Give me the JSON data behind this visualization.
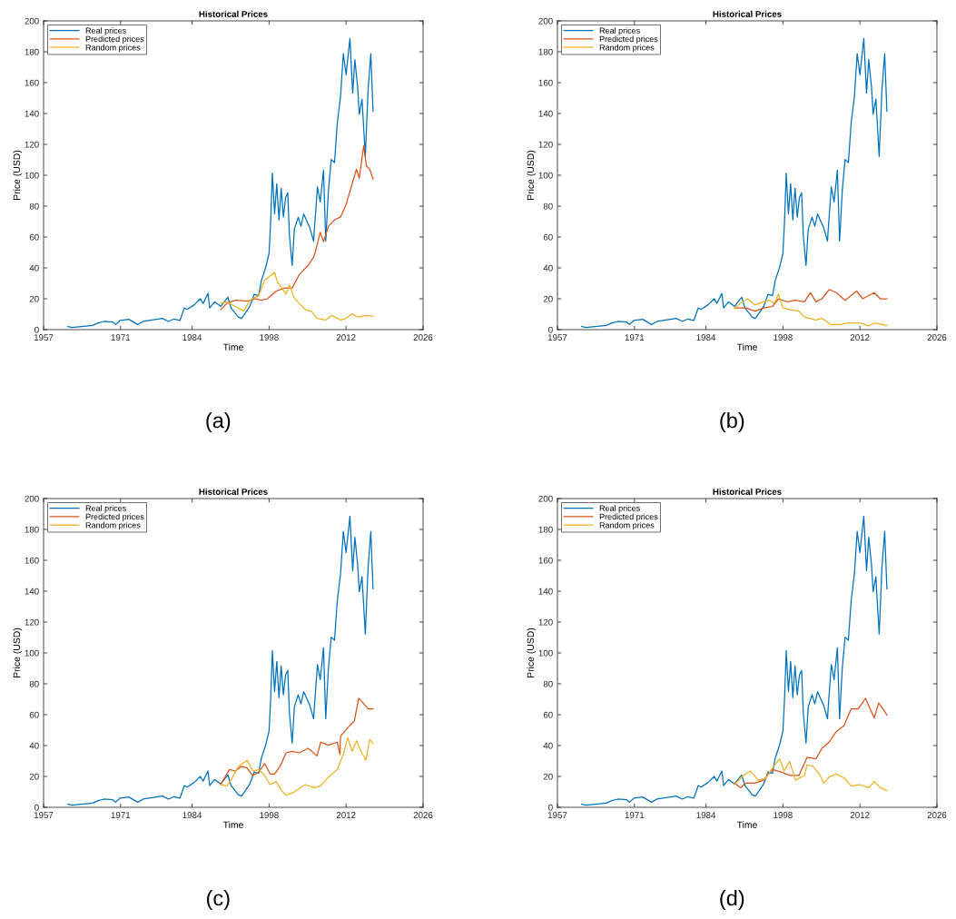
{
  "chart_data": [
    {
      "type": "line",
      "title": "Historical Prices",
      "xlabel": "Time",
      "ylabel": "Price (USD)",
      "annotations": [
        "(a)"
      ],
      "legend": "top left",
      "grid": false,
      "xlim": [
        1957,
        2026
      ],
      "xticks": [
        1957,
        1971,
        1984,
        1998,
        2012,
        2026
      ],
      "ylim": [
        0,
        200
      ],
      "yticks": [
        0,
        20,
        40,
        60,
        80,
        100,
        120,
        140,
        160,
        180,
        200
      ],
      "series": [
        {
          "name": "Real prices",
          "color": "#0072bd",
          "x": [
            1961.4,
            1962.2,
            1965.9,
            1966.9,
            1968.0,
            1969.6,
            1970.1,
            1970.9,
            1972.5,
            1974.1,
            1975.1,
            1978.6,
            1979.7,
            1980.7,
            1981.8,
            1982.6,
            1983.1,
            1984.4,
            1985.5,
            1986.0,
            1986.9,
            1987.2,
            1988.1,
            1989.2,
            1990.5,
            1991.1,
            1992.4,
            1993.0,
            1994.5,
            1995.3,
            1996.1,
            1996.6,
            1997.4,
            1998.0,
            1998.3,
            1998.6,
            1999.0,
            1999.4,
            1999.8,
            2000.2,
            2000.6,
            2001.0,
            2001.4,
            2001.7,
            2002.2,
            2002.6,
            2003.3,
            2003.8,
            2004.3,
            2004.9,
            2005.4,
            2006.1,
            2006.2,
            2006.8,
            2007.3,
            2007.9,
            2008.3,
            2008.8,
            2009.3,
            2009.9,
            2010.4,
            2011.0,
            2011.5,
            2012.0,
            2012.7,
            2013.2,
            2013.6,
            2014.1,
            2014.4,
            2014.9,
            2015.5,
            2016.0,
            2016.5,
            2016.9
          ],
          "values": [
            2,
            1.4,
            2.7,
            4.3,
            5.3,
            4.9,
            3.3,
            5.9,
            6.7,
            3.3,
            5.3,
            7.3,
            5.3,
            6.9,
            5.9,
            14.1,
            13.1,
            16.1,
            20,
            17,
            23.5,
            14.1,
            18,
            15.1,
            21,
            14,
            8.2,
            7.3,
            15.1,
            22.9,
            22,
            31.8,
            40.6,
            49.4,
            71,
            101.4,
            74.9,
            94.5,
            71,
            91.6,
            72.9,
            85.7,
            88.6,
            61.2,
            41.6,
            65.1,
            72.9,
            67,
            74.9,
            70,
            66.1,
            57.3,
            63.1,
            92.5,
            82.7,
            103.3,
            57.3,
            90.6,
            110.2,
            108.2,
            133.7,
            151.4,
            178.8,
            165.1,
            188.6,
            153.3,
            174.9,
            157.3,
            139.6,
            149.4,
            112.2,
            155.3,
            178.8,
            141.6
          ]
        },
        {
          "name": "Predicted prices",
          "color": "#d95319",
          "x": [
            1989.2,
            1990.3,
            1991.9,
            1994.0,
            1995.6,
            1996.6,
            1997.7,
            1999.3,
            2000.9,
            2002.2,
            2003.5,
            2005.1,
            2006.2,
            2007.3,
            2007.9,
            2008.8,
            2009.9,
            2011.0,
            2012.0,
            2013.1,
            2013.9,
            2014.4,
            2015.2,
            2015.7,
            2016.3,
            2016.9
          ],
          "values": [
            13,
            17,
            19,
            18.4,
            20,
            19,
            20,
            25,
            27,
            27,
            35.7,
            41.6,
            47.5,
            63,
            57,
            67,
            71,
            73,
            81,
            94.5,
            104,
            98,
            119,
            106,
            104,
            97.5
          ]
        },
        {
          "name": "Random prices",
          "color": "#edb120",
          "x": [
            1989.2,
            1990.3,
            1991.9,
            1993.4,
            1994.5,
            1996.1,
            1997.2,
            1997.9,
            1999.0,
            1999.5,
            2000.3,
            2001.1,
            2001.7,
            2002.5,
            2003.5,
            2004.6,
            2005.7,
            2006.7,
            2008.3,
            2009.4,
            2011.0,
            2012.0,
            2013.1,
            2014.1,
            2015.7,
            2016.9
          ],
          "values": [
            17,
            18,
            15,
            12,
            19,
            22,
            32,
            34,
            37,
            31,
            27,
            23,
            29,
            21,
            17,
            13,
            12,
            7.3,
            6.3,
            9.2,
            6.3,
            7.3,
            10.2,
            8.2,
            9.2,
            8.6
          ]
        }
      ]
    },
    {
      "type": "line",
      "title": "Historical Prices",
      "xlabel": "Time",
      "ylabel": "Price (USD)",
      "annotations": [
        "(b)"
      ],
      "legend": "top left",
      "grid": false,
      "xlim": [
        1957,
        2026
      ],
      "xticks": [
        1957,
        1971,
        1984,
        1998,
        2012,
        2026
      ],
      "ylim": [
        0,
        200
      ],
      "yticks": [
        0,
        20,
        40,
        60,
        80,
        100,
        120,
        140,
        160,
        180,
        200
      ],
      "series": [
        {
          "name": "Real prices",
          "color": "#0072bd",
          "x": [
            1961.4,
            1962.2,
            1965.9,
            1966.9,
            1968.0,
            1969.6,
            1970.1,
            1970.9,
            1972.5,
            1974.1,
            1975.1,
            1978.6,
            1979.7,
            1980.7,
            1981.8,
            1982.6,
            1983.1,
            1984.4,
            1985.5,
            1986.0,
            1986.9,
            1987.2,
            1988.1,
            1989.2,
            1990.5,
            1991.1,
            1992.4,
            1993.0,
            1994.5,
            1995.3,
            1996.1,
            1996.6,
            1997.4,
            1998.0,
            1998.3,
            1998.6,
            1999.0,
            1999.4,
            1999.8,
            2000.2,
            2000.6,
            2001.0,
            2001.4,
            2001.7,
            2002.2,
            2002.6,
            2003.3,
            2003.8,
            2004.3,
            2004.9,
            2005.4,
            2006.1,
            2006.2,
            2006.8,
            2007.3,
            2007.9,
            2008.3,
            2008.8,
            2009.3,
            2009.9,
            2010.4,
            2011.0,
            2011.5,
            2012.0,
            2012.7,
            2013.2,
            2013.6,
            2014.1,
            2014.4,
            2014.9,
            2015.5,
            2016.0,
            2016.5,
            2016.9
          ],
          "values": [
            2,
            1.4,
            2.7,
            4.3,
            5.3,
            4.9,
            3.3,
            5.9,
            6.7,
            3.3,
            5.3,
            7.3,
            5.3,
            6.9,
            5.9,
            14.1,
            13.1,
            16.1,
            20,
            17,
            23.5,
            14.1,
            18,
            15.1,
            21,
            14,
            8.2,
            7.3,
            15.1,
            22.9,
            22,
            31.8,
            40.6,
            49.4,
            71,
            101.4,
            74.9,
            94.5,
            71,
            91.6,
            72.9,
            85.7,
            88.6,
            61.2,
            41.6,
            65.1,
            72.9,
            67,
            74.9,
            70,
            66.1,
            57.3,
            63.1,
            92.5,
            82.7,
            103.3,
            57.3,
            90.6,
            110.2,
            108.2,
            133.7,
            151.4,
            178.8,
            165.1,
            188.6,
            153.3,
            174.9,
            157.3,
            139.6,
            149.4,
            112.2,
            155.3,
            178.8,
            141.6
          ]
        },
        {
          "name": "Predicted prices",
          "color": "#d95319",
          "x": [
            1989.2,
            1991.3,
            1992.9,
            1994.5,
            1996.1,
            1997.2,
            1998.8,
            2000.3,
            2001.9,
            2003.0,
            2004.0,
            2005.1,
            2006.4,
            2007.7,
            2009.3,
            2011.4,
            2012.5,
            2014.6,
            2015.7,
            2016.9
          ],
          "values": [
            14,
            14,
            12,
            14,
            15,
            20,
            18,
            19,
            18,
            24,
            18,
            20,
            26,
            24,
            19,
            25,
            20,
            24,
            20,
            20
          ]
        },
        {
          "name": "Random prices",
          "color": "#edb120",
          "x": [
            1989.2,
            1990.3,
            1991.6,
            1992.9,
            1994.5,
            1995.6,
            1996.4,
            1997.2,
            1998.0,
            1999.3,
            2000.9,
            2001.9,
            2004.0,
            2005.1,
            2006.7,
            2008.3,
            2009.9,
            2012.0,
            2013.6,
            2014.6,
            2016.9
          ],
          "values": [
            14,
            17,
            20,
            16,
            18,
            19,
            17,
            23,
            14,
            13,
            12,
            8.2,
            6.3,
            7.3,
            3.3,
            3.3,
            4.3,
            4.3,
            2.4,
            4.3,
            2.7
          ]
        }
      ]
    },
    {
      "type": "line",
      "title": "Historical Prices",
      "xlabel": "Time",
      "ylabel": "Price (USD)",
      "annotations": [
        "(c)"
      ],
      "legend": "top left",
      "grid": false,
      "xlim": [
        1957,
        2026
      ],
      "xticks": [
        1957,
        1971,
        1984,
        1998,
        2012,
        2026
      ],
      "ylim": [
        0,
        200
      ],
      "yticks": [
        0,
        20,
        40,
        60,
        80,
        100,
        120,
        140,
        160,
        180,
        200
      ],
      "series": [
        {
          "name": "Real prices",
          "color": "#0072bd",
          "x": [
            1961.4,
            1962.2,
            1965.9,
            1966.9,
            1968.0,
            1969.6,
            1970.1,
            1970.9,
            1972.5,
            1974.1,
            1975.1,
            1978.6,
            1979.7,
            1980.7,
            1981.8,
            1982.6,
            1983.1,
            1984.4,
            1985.5,
            1986.0,
            1986.9,
            1987.2,
            1988.1,
            1989.2,
            1990.5,
            1991.1,
            1992.4,
            1993.0,
            1994.5,
            1995.3,
            1996.1,
            1996.6,
            1997.4,
            1998.0,
            1998.3,
            1998.6,
            1999.0,
            1999.4,
            1999.8,
            2000.2,
            2000.6,
            2001.0,
            2001.4,
            2001.7,
            2002.2,
            2002.6,
            2003.3,
            2003.8,
            2004.3,
            2004.9,
            2005.4,
            2006.1,
            2006.2,
            2006.8,
            2007.3,
            2007.9,
            2008.3,
            2008.8,
            2009.3,
            2009.9,
            2010.4,
            2011.0,
            2011.5,
            2012.0,
            2012.7,
            2013.2,
            2013.6,
            2014.1,
            2014.4,
            2014.9,
            2015.5,
            2016.0,
            2016.5,
            2016.9
          ],
          "values": [
            2,
            1.4,
            2.7,
            4.3,
            5.3,
            4.9,
            3.3,
            5.9,
            6.7,
            3.3,
            5.3,
            7.3,
            5.3,
            6.9,
            5.9,
            14.1,
            13.1,
            16.1,
            20,
            17,
            23.5,
            14.1,
            18,
            15.1,
            21,
            14,
            8.2,
            7.3,
            15.1,
            22.9,
            22,
            31.8,
            40.6,
            49.4,
            71,
            101.4,
            74.9,
            94.5,
            71,
            91.6,
            72.9,
            85.7,
            88.6,
            61.2,
            41.6,
            65.1,
            72.9,
            67,
            74.9,
            70,
            66.1,
            57.3,
            63.1,
            92.5,
            82.7,
            103.3,
            57.3,
            90.6,
            110.2,
            108.2,
            133.7,
            151.4,
            178.8,
            165.1,
            188.6,
            153.3,
            174.9,
            157.3,
            139.6,
            149.4,
            112.2,
            155.3,
            178.8,
            141.6
          ]
        },
        {
          "name": "Predicted prices",
          "color": "#d95319",
          "x": [
            1989.2,
            1990.0,
            1990.8,
            1991.9,
            1992.9,
            1994.0,
            1995.0,
            1996.1,
            1997.2,
            1998.2,
            1999.0,
            2000.0,
            2001.1,
            2002.2,
            2003.5,
            2005.1,
            2006.7,
            2007.4,
            2008.8,
            2010.4,
            2010.9,
            2011.0,
            2012.4,
            2013.5,
            2014.3,
            2015.1,
            2016.0,
            2016.9
          ],
          "values": [
            14.7,
            19.6,
            24.5,
            23.5,
            26.5,
            25.5,
            20.6,
            22.5,
            28.4,
            21.6,
            21.6,
            26.5,
            35.3,
            36.3,
            35.3,
            38.2,
            33.3,
            42.2,
            40.2,
            42.2,
            34.3,
            46,
            52,
            55.9,
            70.6,
            67.6,
            63.7,
            63.7
          ]
        },
        {
          "name": "Random prices",
          "color": "#edb120",
          "x": [
            1989.2,
            1990.3,
            1991.1,
            1992.4,
            1994.0,
            1995.1,
            1996.1,
            1997.2,
            1998.2,
            1999.3,
            2000.3,
            2001.1,
            2002.5,
            2004.6,
            2006.2,
            2007.3,
            2008.8,
            2010.4,
            2011.5,
            2012.3,
            2013.1,
            2013.9,
            2014.7,
            2015.6,
            2016.3,
            2016.9
          ],
          "values": [
            14.7,
            13.7,
            17.6,
            26.5,
            30.4,
            23.5,
            24.5,
            20.6,
            14.7,
            16.7,
            10.8,
            7.8,
            9.8,
            14.7,
            12.7,
            13.7,
            19.6,
            24.5,
            34.3,
            45.1,
            36.3,
            43.1,
            36.3,
            30.4,
            44.1,
            41.2
          ]
        }
      ]
    },
    {
      "type": "line",
      "title": "Historical Prices",
      "xlabel": "Time",
      "ylabel": "Price (USD)",
      "annotations": [
        "(d)"
      ],
      "legend": "top left",
      "grid": false,
      "xlim": [
        1957,
        2026
      ],
      "xticks": [
        1957,
        1971,
        1984,
        1998,
        2012,
        2026
      ],
      "ylim": [
        0,
        200
      ],
      "yticks": [
        0,
        20,
        40,
        60,
        80,
        100,
        120,
        140,
        160,
        180,
        200
      ],
      "series": [
        {
          "name": "Real prices",
          "color": "#0072bd",
          "x": [
            1961.4,
            1962.2,
            1965.9,
            1966.9,
            1968.0,
            1969.6,
            1970.1,
            1970.9,
            1972.5,
            1974.1,
            1975.1,
            1978.6,
            1979.7,
            1980.7,
            1981.8,
            1982.6,
            1983.1,
            1984.4,
            1985.5,
            1986.0,
            1986.9,
            1987.2,
            1988.1,
            1989.2,
            1990.5,
            1991.1,
            1992.4,
            1993.0,
            1994.5,
            1995.3,
            1996.1,
            1996.6,
            1997.4,
            1998.0,
            1998.3,
            1998.6,
            1999.0,
            1999.4,
            1999.8,
            2000.2,
            2000.6,
            2001.0,
            2001.4,
            2001.7,
            2002.2,
            2002.6,
            2003.3,
            2003.8,
            2004.3,
            2004.9,
            2005.4,
            2006.1,
            2006.2,
            2006.8,
            2007.3,
            2007.9,
            2008.3,
            2008.8,
            2009.3,
            2009.9,
            2010.4,
            2011.0,
            2011.5,
            2012.0,
            2012.7,
            2013.2,
            2013.6,
            2014.1,
            2014.4,
            2014.9,
            2015.5,
            2016.0,
            2016.5,
            2016.9
          ],
          "values": [
            2,
            1.4,
            2.7,
            4.3,
            5.3,
            4.9,
            3.3,
            5.9,
            6.7,
            3.3,
            5.3,
            7.3,
            5.3,
            6.9,
            5.9,
            14.1,
            13.1,
            16.1,
            20,
            17,
            23.5,
            14.1,
            18,
            15.1,
            21,
            14,
            8.2,
            7.3,
            15.1,
            22.9,
            22,
            31.8,
            40.6,
            49.4,
            71,
            101.4,
            74.9,
            94.5,
            71,
            91.6,
            72.9,
            85.7,
            88.6,
            61.2,
            41.6,
            65.1,
            72.9,
            67,
            74.9,
            70,
            66.1,
            57.3,
            63.1,
            92.5,
            82.7,
            103.3,
            57.3,
            90.6,
            110.2,
            108.2,
            133.7,
            151.4,
            178.8,
            165.1,
            188.6,
            153.3,
            174.9,
            157.3,
            139.6,
            149.4,
            112.2,
            155.3,
            178.8,
            141.6
          ]
        },
        {
          "name": "Predicted prices",
          "color": "#d95319",
          "x": [
            1989.2,
            1990.3,
            1991.3,
            1992.9,
            1994.5,
            1996.1,
            1997.7,
            1999.3,
            2000.9,
            2002.4,
            2004.0,
            2005.1,
            2006.4,
            2007.7,
            2009.1,
            2010.4,
            2011.7,
            2013.0,
            2014.6,
            2015.4,
            2016.2,
            2016.9
          ],
          "values": [
            15.7,
            12.7,
            15.7,
            15.7,
            17.6,
            24.5,
            22.9,
            20.6,
            20.6,
            32.4,
            31.4,
            38.2,
            42.2,
            49,
            52.9,
            63.7,
            63.7,
            70.6,
            57.8,
            67.6,
            63.7,
            59.8
          ]
        },
        {
          "name": "Random prices",
          "color": "#edb120",
          "x": [
            1989.2,
            1990.8,
            1992.1,
            1993.5,
            1994.8,
            1996.1,
            1997.4,
            1998.2,
            1999.2,
            2000.3,
            2001.9,
            2002.4,
            2003.5,
            2004.6,
            2005.4,
            2006.4,
            2007.7,
            2009.3,
            2010.4,
            2012.0,
            2013.6,
            2014.6,
            2015.7,
            2016.9
          ],
          "values": [
            14.7,
            20.6,
            23.5,
            17.6,
            18.6,
            25.5,
            31.4,
            23.5,
            29.8,
            17.6,
            20.6,
            27.5,
            26.5,
            21.6,
            15.7,
            19.6,
            21.6,
            18.6,
            13.7,
            14.7,
            12.7,
            16.7,
            12.7,
            10.8
          ]
        }
      ]
    }
  ]
}
